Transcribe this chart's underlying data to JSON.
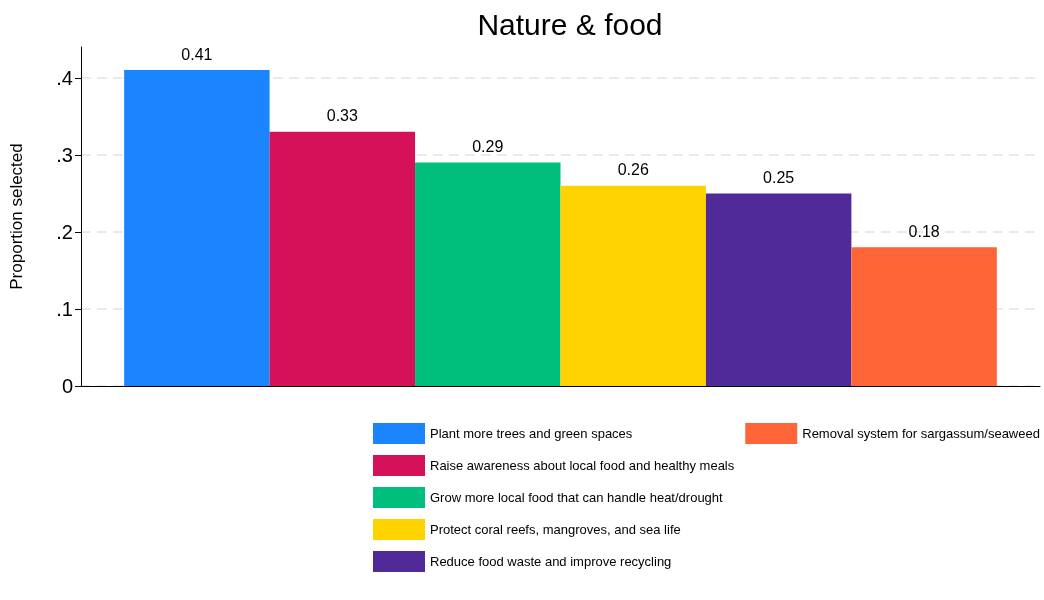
{
  "chart_data": {
    "type": "bar",
    "title": "Nature & food",
    "ylabel": "Proportion selected",
    "categories": [
      null
    ],
    "series": [
      {
        "name": "Plant more trees and green spaces",
        "color": "#1a85ff",
        "values": [
          0.41
        ]
      },
      {
        "name": "Raise awareness about local food and healthy meals",
        "color": "#d41159",
        "values": [
          0.33
        ]
      },
      {
        "name": "Grow more local food that can handle heat/drought",
        "color": "#00bf7d",
        "values": [
          0.29
        ]
      },
      {
        "name": "Protect coral reefs, mangroves, and sea life",
        "color": "#ffd300",
        "values": [
          0.26
        ]
      },
      {
        "name": "Reduce food waste and improve recycling",
        "color": "#512a9a",
        "values": [
          0.25
        ]
      },
      {
        "name": "Removal system for sargassum/seaweed",
        "color": "#ff6536",
        "values": [
          0.18
        ]
      }
    ],
    "ylim": [
      0,
      0.44
    ],
    "yticks": [
      0,
      {
        "value": 0.1,
        "label": ".1"
      },
      {
        "value": 0.2,
        "label": ".2"
      },
      {
        "value": 0.3,
        "label": ".3"
      },
      {
        "value": 0.4,
        "label": ".4"
      }
    ],
    "grid": "y",
    "legend": "bottom",
    "data_labels": true
  }
}
